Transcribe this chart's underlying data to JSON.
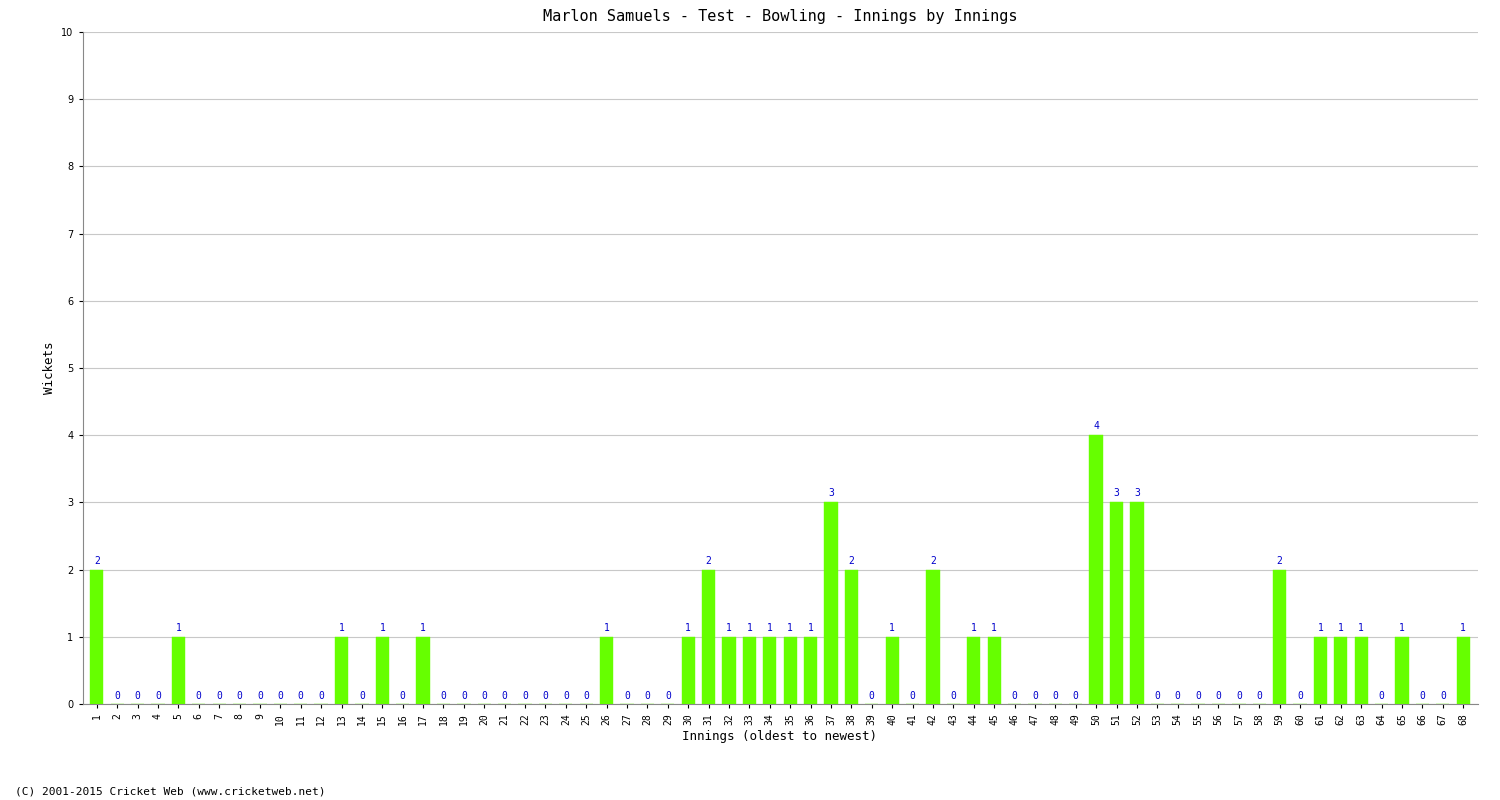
{
  "title": "Marlon Samuels - Test - Bowling - Innings by Innings",
  "xlabel": "Innings (oldest to newest)",
  "ylabel": "Wickets",
  "ylim": [
    0,
    10
  ],
  "yticks": [
    0,
    1,
    2,
    3,
    4,
    5,
    6,
    7,
    8,
    9,
    10
  ],
  "bar_color": "#66ff00",
  "label_color": "#0000cc",
  "background_color": "#ffffff",
  "grid_color": "#c8c8c8",
  "innings": [
    1,
    2,
    3,
    4,
    5,
    6,
    7,
    8,
    9,
    10,
    11,
    12,
    13,
    14,
    15,
    16,
    17,
    18,
    19,
    20,
    21,
    22,
    23,
    24,
    25,
    26,
    27,
    28,
    29,
    30,
    31,
    32,
    33,
    34,
    35,
    36,
    37,
    38,
    39,
    40,
    41,
    42,
    43,
    44,
    45,
    46,
    47,
    48,
    49,
    50,
    51,
    52,
    53,
    54,
    55,
    56,
    57,
    58,
    59,
    60,
    61,
    62,
    63,
    64,
    65,
    66,
    67,
    68
  ],
  "wickets": [
    2,
    0,
    0,
    0,
    1,
    0,
    0,
    0,
    0,
    0,
    0,
    0,
    1,
    0,
    1,
    0,
    1,
    0,
    0,
    0,
    0,
    0,
    0,
    0,
    0,
    1,
    0,
    0,
    0,
    1,
    2,
    1,
    1,
    1,
    1,
    1,
    3,
    2,
    0,
    1,
    0,
    2,
    0,
    1,
    1,
    0,
    0,
    0,
    0,
    4,
    3,
    3,
    0,
    0,
    0,
    0,
    0,
    0,
    2,
    0,
    1,
    1,
    1,
    0,
    1,
    0,
    0,
    1
  ],
  "footer": "(C) 2001-2015 Cricket Web (www.cricketweb.net)",
  "title_fontsize": 11,
  "axis_label_fontsize": 9,
  "tick_fontsize": 7,
  "value_label_fontsize": 7,
  "footer_fontsize": 8,
  "bar_width": 0.65
}
